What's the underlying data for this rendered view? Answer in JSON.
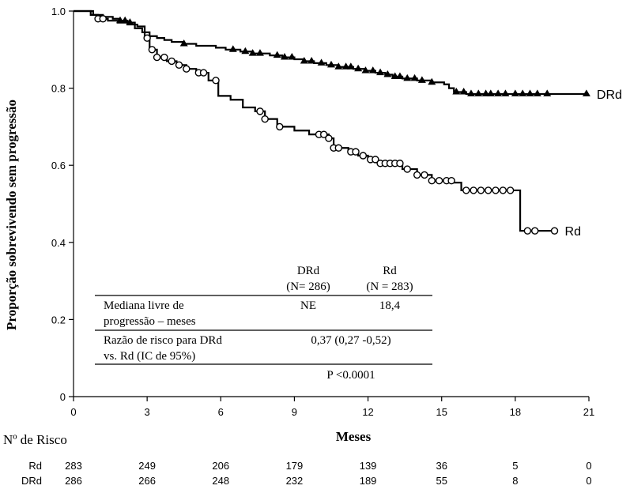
{
  "chart_data": {
    "type": "line",
    "ylabel": "Proporção sobrevivendo sem progressão",
    "xlabel": "Meses",
    "xlim": [
      0,
      21
    ],
    "ylim": [
      0,
      1.0
    ],
    "xticks": [
      "0",
      "3",
      "6",
      "9",
      "12",
      "15",
      "18",
      "21"
    ],
    "yticks": [
      "0",
      "0.2",
      "0.4",
      "0.6",
      "0.8",
      "1.0"
    ],
    "series": [
      {
        "name": "DRd",
        "marker": "triangle",
        "points": [
          [
            0,
            1.0
          ],
          [
            0.5,
            1.0
          ],
          [
            0.8,
            0.99
          ],
          [
            1.2,
            0.985
          ],
          [
            1.6,
            0.98
          ],
          [
            1.9,
            0.975
          ],
          [
            2.2,
            0.97
          ],
          [
            2.5,
            0.955
          ],
          [
            2.8,
            0.945
          ],
          [
            3.1,
            0.935
          ],
          [
            3.4,
            0.93
          ],
          [
            3.7,
            0.925
          ],
          [
            4.0,
            0.92
          ],
          [
            4.5,
            0.915
          ],
          [
            5.0,
            0.91
          ],
          [
            5.8,
            0.905
          ],
          [
            6.2,
            0.9
          ],
          [
            6.8,
            0.895
          ],
          [
            7.3,
            0.89
          ],
          [
            8.0,
            0.885
          ],
          [
            8.5,
            0.88
          ],
          [
            9.0,
            0.875
          ],
          [
            9.4,
            0.87
          ],
          [
            9.8,
            0.865
          ],
          [
            10.3,
            0.86
          ],
          [
            10.8,
            0.855
          ],
          [
            11.4,
            0.85
          ],
          [
            11.9,
            0.845
          ],
          [
            12.3,
            0.84
          ],
          [
            12.7,
            0.835
          ],
          [
            13.0,
            0.83
          ],
          [
            13.4,
            0.825
          ],
          [
            14.0,
            0.82
          ],
          [
            14.6,
            0.815
          ],
          [
            15.1,
            0.81
          ],
          [
            15.3,
            0.8
          ],
          [
            15.5,
            0.79
          ],
          [
            16.0,
            0.785
          ],
          [
            17.0,
            0.785
          ],
          [
            18.5,
            0.785
          ],
          [
            19.5,
            0.785
          ],
          [
            20.9,
            0.785
          ]
        ],
        "censored": [
          1.9,
          2.1,
          2.3,
          4.5,
          6.5,
          7.0,
          7.3,
          7.6,
          8.3,
          8.6,
          8.9,
          9.4,
          9.7,
          10.1,
          10.5,
          10.8,
          11.1,
          11.3,
          11.6,
          11.9,
          12.2,
          12.5,
          12.8,
          13.1,
          13.3,
          13.6,
          13.9,
          14.2,
          14.6,
          15.6,
          15.9,
          16.2,
          16.5,
          16.8,
          17.0,
          17.3,
          17.6,
          18.0,
          18.3,
          18.6,
          18.9,
          19.3,
          20.9
        ]
      },
      {
        "name": "Rd",
        "marker": "circle",
        "points": [
          [
            0,
            1.0
          ],
          [
            0.7,
            0.99
          ],
          [
            1.0,
            0.98
          ],
          [
            1.4,
            0.975
          ],
          [
            1.8,
            0.97
          ],
          [
            2.2,
            0.965
          ],
          [
            2.6,
            0.96
          ],
          [
            2.9,
            0.93
          ],
          [
            3.1,
            0.9
          ],
          [
            3.4,
            0.88
          ],
          [
            3.8,
            0.87
          ],
          [
            4.2,
            0.86
          ],
          [
            4.6,
            0.85
          ],
          [
            5.0,
            0.84
          ],
          [
            5.5,
            0.82
          ],
          [
            5.9,
            0.78
          ],
          [
            6.4,
            0.77
          ],
          [
            6.9,
            0.75
          ],
          [
            7.4,
            0.74
          ],
          [
            7.8,
            0.72
          ],
          [
            8.3,
            0.7
          ],
          [
            9.0,
            0.69
          ],
          [
            9.6,
            0.68
          ],
          [
            10.4,
            0.67
          ],
          [
            10.6,
            0.645
          ],
          [
            11.2,
            0.635
          ],
          [
            11.6,
            0.625
          ],
          [
            12.0,
            0.615
          ],
          [
            12.4,
            0.605
          ],
          [
            13.4,
            0.59
          ],
          [
            14.0,
            0.575
          ],
          [
            14.6,
            0.56
          ],
          [
            15.5,
            0.555
          ],
          [
            15.8,
            0.535
          ],
          [
            17.6,
            0.535
          ],
          [
            18.2,
            0.535
          ],
          [
            18.2,
            0.43
          ],
          [
            19.6,
            0.43
          ]
        ],
        "censored": [
          1.0,
          1.2,
          3.0,
          3.2,
          3.4,
          3.7,
          4.0,
          4.3,
          4.6,
          5.1,
          5.3,
          5.8,
          7.6,
          7.8,
          8.4,
          10.0,
          10.2,
          10.4,
          10.6,
          10.8,
          11.3,
          11.5,
          11.8,
          12.1,
          12.3,
          12.5,
          12.7,
          12.9,
          13.1,
          13.3,
          13.6,
          14.0,
          14.3,
          14.6,
          14.9,
          15.2,
          15.4,
          16.0,
          16.3,
          16.6,
          16.9,
          17.2,
          17.5,
          17.8,
          18.5,
          18.8,
          19.6
        ]
      }
    ],
    "table": {
      "col1_name": "DRd",
      "col1_n": "(N= 286)",
      "col2_name": "Rd",
      "col2_n": "(N = 283)",
      "row1_label_line1": "Mediana livre de",
      "row1_label_line2": "progressão – meses",
      "row1_col1": "NE",
      "row1_col2": "18,4",
      "row2_label_line1": "Razão de risco para DRd",
      "row2_label_line2": "vs. Rd (IC de 95%)",
      "row2_value": "0,37 (0,27 -0,52)",
      "pvalue": "P <0.0001"
    },
    "risk_table": {
      "title": "Nº de Risco",
      "rows": [
        {
          "label": "Rd",
          "values": [
            "283",
            "249",
            "206",
            "179",
            "139",
            "36",
            "5",
            "0"
          ]
        },
        {
          "label": "DRd",
          "values": [
            "286",
            "266",
            "248",
            "232",
            "189",
            "55",
            "8",
            "0"
          ]
        }
      ]
    }
  }
}
